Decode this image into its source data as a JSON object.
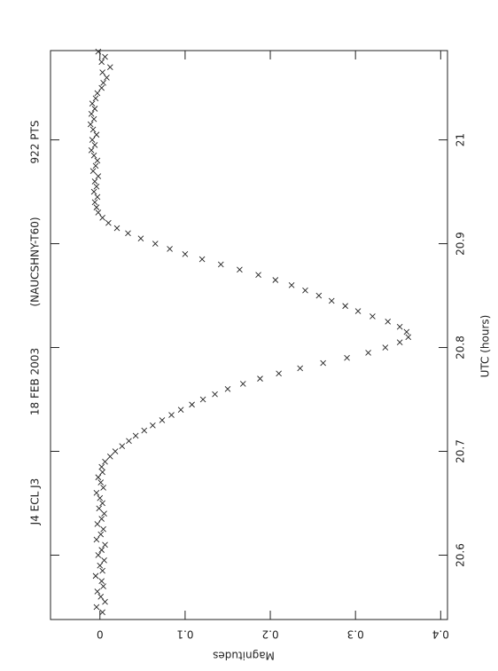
{
  "chart_data": {
    "type": "scatter",
    "title": [
      "J4 ECL J3",
      "18 FEB 2003",
      "(NAUCSHNY-T60)",
      "922 PTS"
    ],
    "x_label": "UTC (hours)",
    "y_label": "Magnitudes",
    "xlim": [
      20.538,
      21.086
    ],
    "ylim": [
      -0.058,
      0.408
    ],
    "xticks": [
      20.6,
      20.7,
      20.8,
      20.9,
      21
    ],
    "yticks": [
      0,
      0.1,
      0.2,
      0.3,
      0.4
    ],
    "color": "#222222",
    "x": [
      20.545,
      20.55,
      20.555,
      20.56,
      20.565,
      20.57,
      20.575,
      20.58,
      20.585,
      20.59,
      20.595,
      20.6,
      20.605,
      20.61,
      20.615,
      20.62,
      20.625,
      20.63,
      20.635,
      20.64,
      20.645,
      20.65,
      20.655,
      20.66,
      20.665,
      20.67,
      20.675,
      20.68,
      20.685,
      20.69,
      20.695,
      20.7,
      20.705,
      20.71,
      20.715,
      20.72,
      20.725,
      20.73,
      20.735,
      20.74,
      20.745,
      20.75,
      20.755,
      20.76,
      20.765,
      20.77,
      20.775,
      20.78,
      20.785,
      20.79,
      20.795,
      20.8,
      20.805,
      20.81,
      20.815,
      20.82,
      20.825,
      20.83,
      20.835,
      20.84,
      20.845,
      20.85,
      20.855,
      20.86,
      20.865,
      20.87,
      20.875,
      20.88,
      20.885,
      20.89,
      20.895,
      20.9,
      20.905,
      20.91,
      20.915,
      20.92,
      20.925,
      20.93,
      20.935,
      20.94,
      20.945,
      20.95,
      20.955,
      20.96,
      20.965,
      20.97,
      20.975,
      20.98,
      20.985,
      20.99,
      20.995,
      21.0,
      21.005,
      21.01,
      21.015,
      21.02,
      21.025,
      21.03,
      21.035,
      21.04,
      21.045,
      21.05,
      21.055,
      21.06,
      21.065,
      21.07,
      21.075,
      21.08,
      21.085
    ],
    "values": [
      0.003,
      -0.004,
      0.006,
      0.001,
      -0.003,
      0.004,
      0.002,
      -0.005,
      0.003,
      0.0,
      0.005,
      -0.002,
      0.002,
      0.006,
      -0.004,
      0.001,
      0.004,
      -0.003,
      0.002,
      0.005,
      -0.001,
      0.003,
      0.0,
      -0.004,
      0.004,
      0.001,
      -0.002,
      0.003,
      0.002,
      0.006,
      0.012,
      0.018,
      0.026,
      0.034,
      0.042,
      0.052,
      0.062,
      0.073,
      0.084,
      0.095,
      0.108,
      0.121,
      0.135,
      0.15,
      0.168,
      0.188,
      0.21,
      0.235,
      0.262,
      0.29,
      0.315,
      0.335,
      0.352,
      0.362,
      0.36,
      0.352,
      0.338,
      0.32,
      0.303,
      0.288,
      0.272,
      0.257,
      0.241,
      0.225,
      0.206,
      0.186,
      0.164,
      0.142,
      0.12,
      0.1,
      0.082,
      0.065,
      0.048,
      0.033,
      0.02,
      0.01,
      0.003,
      -0.002,
      -0.004,
      -0.006,
      -0.003,
      -0.007,
      -0.004,
      -0.006,
      -0.002,
      -0.008,
      -0.005,
      -0.003,
      -0.007,
      -0.01,
      -0.006,
      -0.009,
      -0.004,
      -0.008,
      -0.011,
      -0.007,
      -0.01,
      -0.006,
      -0.009,
      -0.005,
      -0.003,
      0.002,
      0.004,
      0.008,
      0.003,
      0.012,
      0.002,
      0.006,
      -0.002
    ]
  }
}
